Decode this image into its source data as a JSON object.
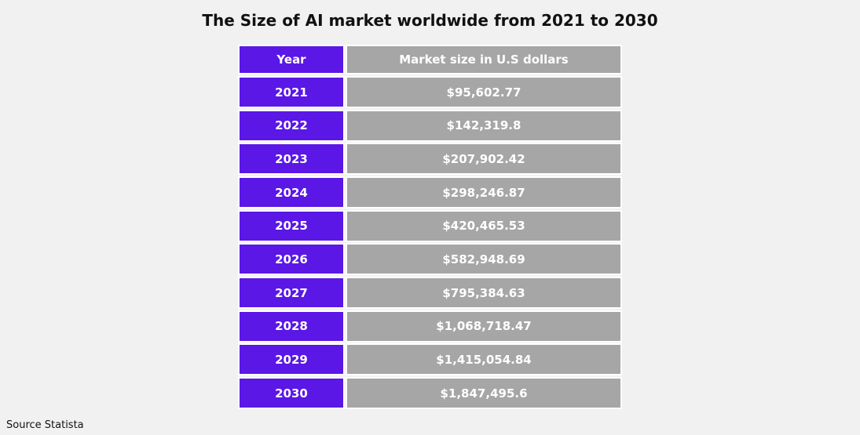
{
  "title": "The Size of AI market worldwide from 2021 to 2030",
  "table": {
    "header": [
      "Year",
      "Market size in U.S dollars"
    ],
    "rows": [
      [
        "2021",
        "$95,602.77"
      ],
      [
        "2022",
        "$142,319.8"
      ],
      [
        "2023",
        "$207,902.42"
      ],
      [
        "2024",
        "$298,246.87"
      ],
      [
        "2025",
        "$420,465.53"
      ],
      [
        "2026",
        "$582,948.69"
      ],
      [
        "2027",
        "$795,384.63"
      ],
      [
        "2028",
        "$1,068,718.47"
      ],
      [
        "2029",
        "$1,415,054.84"
      ],
      [
        "2030",
        "$1,847,495.6"
      ]
    ]
  },
  "source": "Source Statista"
}
